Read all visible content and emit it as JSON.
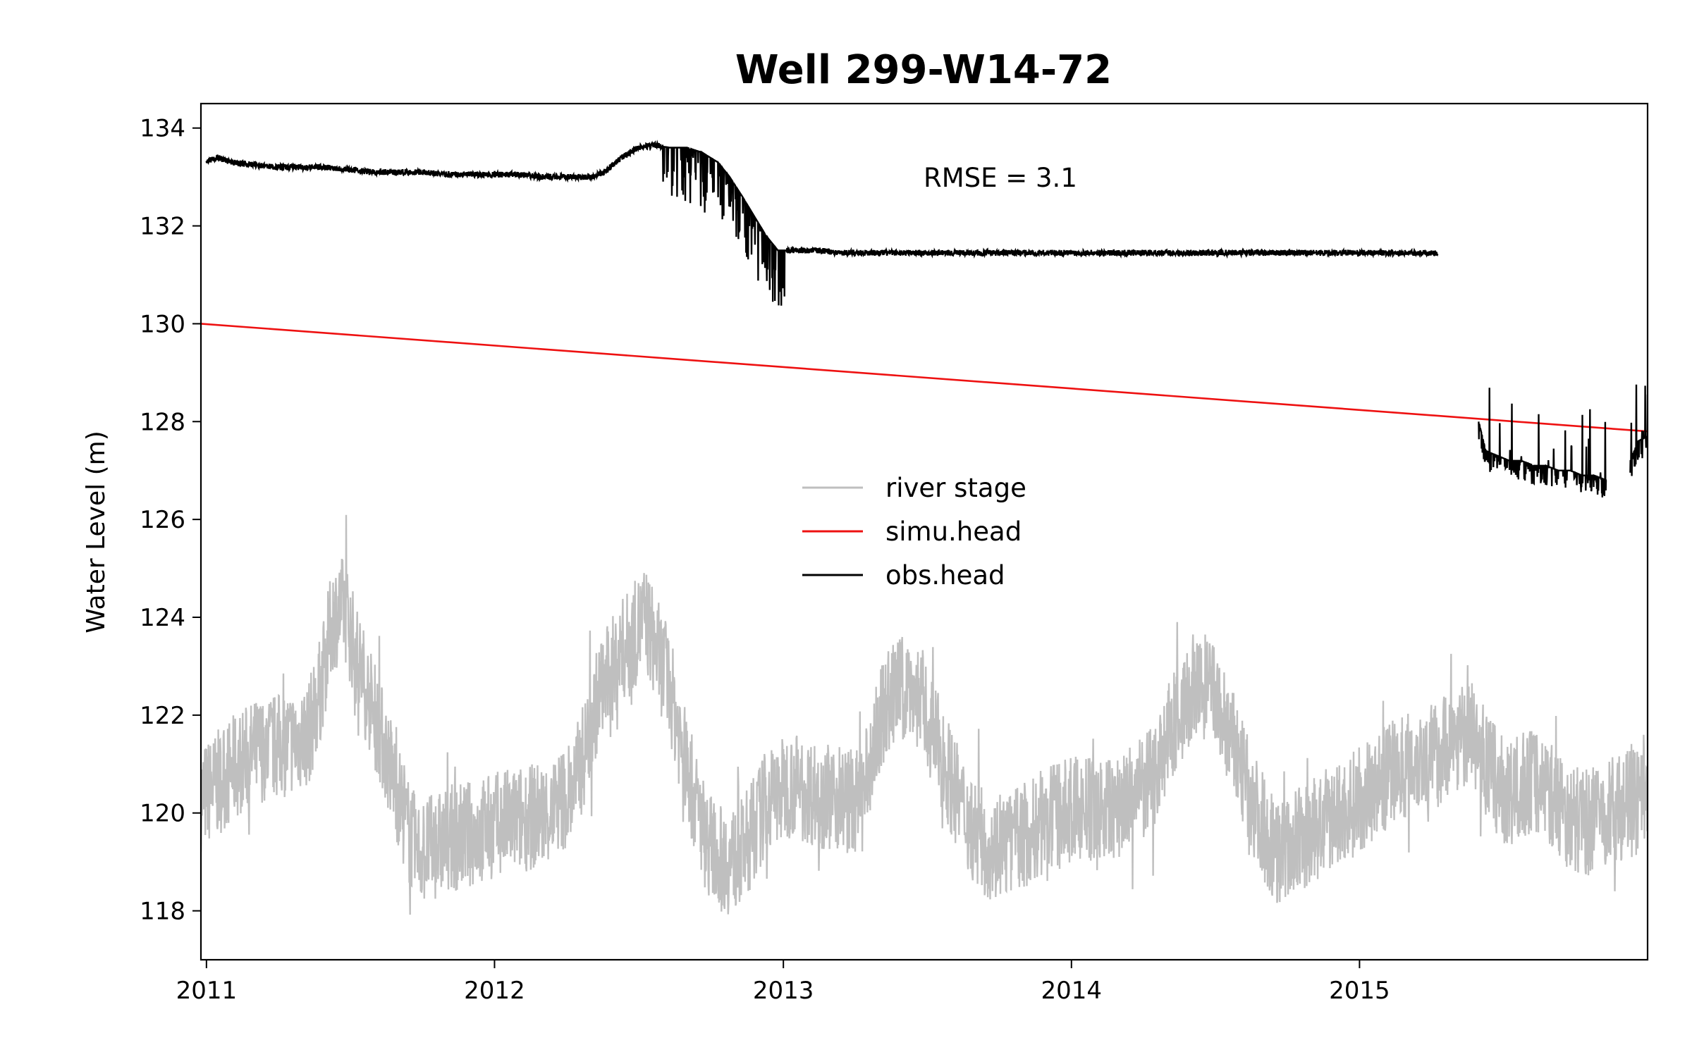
{
  "chart_data": {
    "type": "line",
    "title": "Well 299-W14-72",
    "xlabel": "",
    "ylabel": "Water Level (m)",
    "xlim": [
      "2010-12-25",
      "2016-01-01"
    ],
    "ylim": [
      117,
      134.5
    ],
    "x_ticks": [
      "2011",
      "2012",
      "2013",
      "2014",
      "2015"
    ],
    "y_ticks": [
      118,
      120,
      122,
      124,
      126,
      128,
      130,
      132,
      134
    ],
    "grid": false,
    "legend": {
      "position": "center",
      "entries": [
        "river stage",
        "simu.head",
        "obs.head"
      ]
    },
    "annotation": "RMSE = 3.1",
    "series": [
      {
        "name": "river stage",
        "color": "#bfbfbf",
        "x": [
          "2010-12-25",
          "2011-01-15",
          "2011-02-10",
          "2011-03-10",
          "2011-04-10",
          "2011-05-10",
          "2011-05-25",
          "2011-06-10",
          "2011-06-25",
          "2011-07-10",
          "2011-07-25",
          "2011-08-10",
          "2011-08-25",
          "2011-09-10",
          "2011-09-25",
          "2011-10-15",
          "2011-11-10",
          "2011-12-10",
          "2012-01-10",
          "2012-02-10",
          "2012-03-10",
          "2012-04-10",
          "2012-04-25",
          "2012-05-10",
          "2012-05-25",
          "2012-06-10",
          "2012-06-25",
          "2012-07-10",
          "2012-07-25",
          "2012-08-10",
          "2012-08-25",
          "2012-09-10",
          "2012-09-25",
          "2012-10-10",
          "2012-10-25",
          "2012-11-10",
          "2012-12-10",
          "2013-01-10",
          "2013-02-10",
          "2013-03-10",
          "2013-04-10",
          "2013-04-25",
          "2013-05-10",
          "2013-05-25",
          "2013-06-10",
          "2013-06-25",
          "2013-07-10",
          "2013-07-25",
          "2013-08-10",
          "2013-08-25",
          "2013-09-10",
          "2013-09-25",
          "2013-10-15",
          "2013-11-10",
          "2013-12-10",
          "2014-01-10",
          "2014-02-10",
          "2014-03-10",
          "2014-04-10",
          "2014-04-25",
          "2014-05-10",
          "2014-05-25",
          "2014-06-10",
          "2014-06-25",
          "2014-07-10",
          "2014-07-25",
          "2014-08-10",
          "2014-08-25",
          "2014-09-10",
          "2014-09-25",
          "2014-10-15",
          "2014-11-10",
          "2014-12-10",
          "2015-01-10",
          "2015-02-10",
          "2015-03-10",
          "2015-04-10",
          "2015-04-25",
          "2015-05-10",
          "2015-05-25",
          "2015-06-10",
          "2015-06-25",
          "2015-07-10",
          "2015-07-25",
          "2015-08-10",
          "2015-08-25",
          "2015-09-10",
          "2015-09-25",
          "2015-10-15",
          "2015-11-10",
          "2015-12-10",
          "2016-01-01"
        ],
        "y": [
          120.3,
          120.6,
          121.0,
          121.3,
          121.4,
          121.6,
          122.5,
          124.0,
          124.2,
          123.2,
          122.4,
          121.6,
          120.8,
          119.8,
          119.2,
          119.3,
          119.5,
          119.6,
          119.8,
          119.9,
          120.0,
          120.5,
          121.3,
          122.3,
          122.8,
          123.3,
          123.6,
          124.0,
          123.3,
          122.6,
          121.4,
          120.3,
          119.5,
          119.1,
          119.0,
          119.2,
          120.2,
          120.6,
          120.4,
          120.3,
          120.2,
          121.3,
          122.2,
          122.5,
          122.6,
          122.3,
          121.6,
          121.0,
          120.3,
          119.8,
          119.4,
          119.3,
          119.4,
          119.6,
          119.9,
          120.1,
          120.0,
          120.2,
          120.6,
          121.2,
          121.8,
          122.2,
          122.5,
          122.6,
          122.0,
          121.4,
          120.6,
          120.0,
          119.4,
          119.2,
          119.4,
          119.7,
          120.0,
          120.4,
          120.8,
          121.1,
          121.2,
          121.5,
          121.6,
          121.6,
          121.0,
          120.6,
          120.3,
          120.6,
          120.7,
          120.5,
          120.2,
          119.9,
          119.8,
          120.0,
          120.2,
          120.2
        ]
      },
      {
        "name": "simu.head",
        "color": "#ee1111",
        "x": [
          "2010-12-25",
          "2016-01-01"
        ],
        "y": [
          130.0,
          127.8
        ]
      },
      {
        "name": "obs.head",
        "color": "#000000",
        "segments": [
          {
            "x": [
              "2011-01-01",
              "2011-01-15",
              "2011-02-01",
              "2011-03-01",
              "2011-04-01",
              "2011-05-01",
              "2011-06-01",
              "2011-07-01",
              "2011-08-01",
              "2011-09-01",
              "2011-10-01",
              "2011-11-01",
              "2011-12-01",
              "2012-01-01",
              "2012-02-01",
              "2012-03-01",
              "2012-04-01",
              "2012-05-01",
              "2012-05-20",
              "2012-06-10",
              "2012-07-01",
              "2012-07-20",
              "2012-08-10",
              "2012-09-01",
              "2012-09-20",
              "2012-10-10",
              "2012-10-25",
              "2012-11-10",
              "2012-11-25",
              "2012-12-10",
              "2012-12-25",
              "2013-01-15",
              "2013-02-15",
              "2013-03-15",
              "2013-06-01",
              "2013-09-01",
              "2013-12-01",
              "2014-03-01",
              "2014-06-01",
              "2014-09-01",
              "2014-12-01",
              "2015-03-01",
              "2015-04-10"
            ],
            "y": [
              133.3,
              133.4,
              133.3,
              133.25,
              133.2,
              133.2,
              133.2,
              133.15,
              133.1,
              133.1,
              133.1,
              133.05,
              133.05,
              133.05,
              133.05,
              133.0,
              133.0,
              133.0,
              133.1,
              133.4,
              133.6,
              133.65,
              133.6,
              133.6,
              133.5,
              133.3,
              133.0,
              132.6,
              132.2,
              131.8,
              131.5,
              131.5,
              131.5,
              131.45,
              131.45,
              131.45,
              131.45,
              131.45,
              131.45,
              131.45,
              131.45,
              131.45,
              131.45
            ]
          },
          {
            "x": [
              "2015-06-01",
              "2015-06-10",
              "2015-06-25",
              "2015-07-10",
              "2015-07-25",
              "2015-08-10",
              "2015-08-25",
              "2015-09-10",
              "2015-09-25",
              "2015-10-10",
              "2015-10-25",
              "2015-11-10"
            ],
            "y": [
              128.0,
              127.4,
              127.3,
              127.2,
              127.2,
              127.1,
              127.1,
              127.0,
              127.0,
              126.9,
              126.9,
              126.8
            ]
          },
          {
            "x": [
              "2015-12-10",
              "2015-12-20",
              "2016-01-01"
            ],
            "y": [
              127.2,
              127.6,
              127.7
            ]
          }
        ]
      }
    ]
  }
}
